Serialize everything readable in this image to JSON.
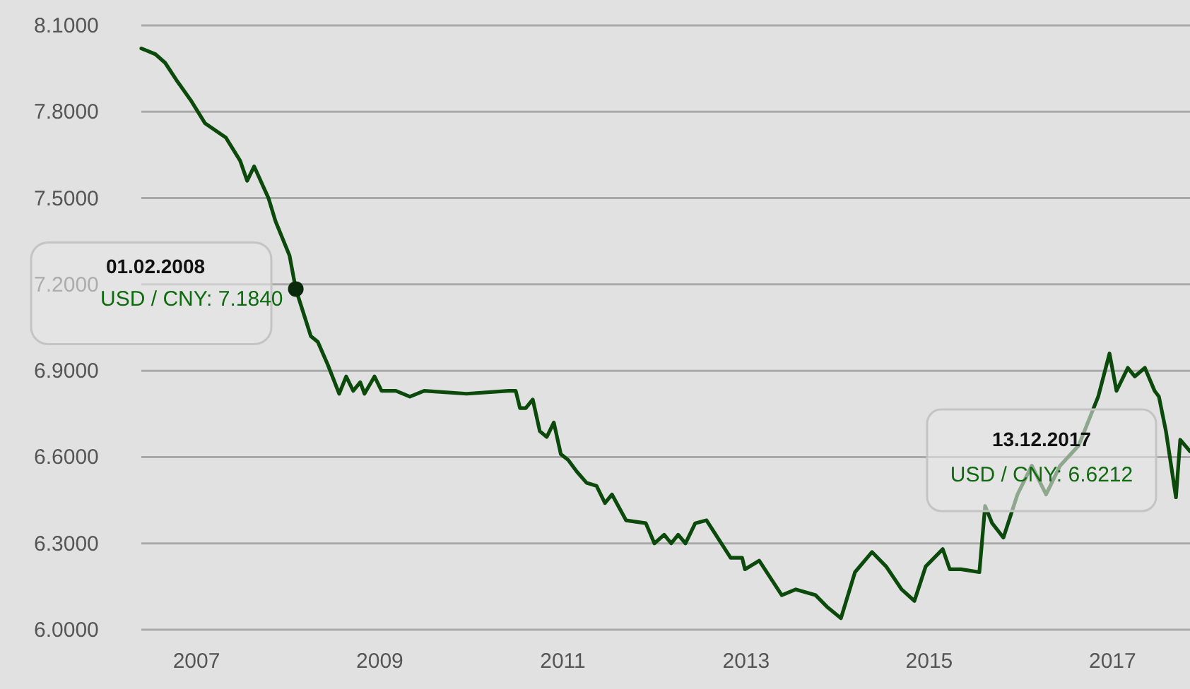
{
  "chart_data": {
    "type": "line",
    "x": [
      "2006-05-26",
      "2006-06-23",
      "2006-07-21",
      "2006-08-29",
      "2006-10-13",
      "2006-12-09",
      "2007-02-04",
      "2007-04-28",
      "2007-06-24",
      "2007-07-22",
      "2007-08-19",
      "2007-10-15",
      "2007-11-12",
      "2008-01-07",
      "2008-02-01",
      "2008-04-01",
      "2008-04-29",
      "2008-06-08",
      "2008-07-23",
      "2008-08-20",
      "2008-09-17",
      "2008-10-15",
      "2008-11-01",
      "2008-12-11",
      "2009-01-08",
      "2009-03-06",
      "2009-05-01",
      "2009-06-27",
      "2009-12-13",
      "2010-05-30",
      "2010-06-27",
      "2010-07-14",
      "2010-08-06",
      "2010-09-03",
      "2010-10-01",
      "2010-10-29",
      "2010-11-26",
      "2010-12-24",
      "2011-01-22",
      "2011-02-25",
      "2011-04-06",
      "2011-05-15",
      "2011-06-18",
      "2011-07-16",
      "2011-09-10",
      "2011-11-28",
      "2012-01-01",
      "2012-02-09",
      "2012-03-08",
      "2012-04-05",
      "2012-05-04",
      "2012-06-12",
      "2012-07-27",
      "2012-10-31",
      "2012-12-16",
      "2012-12-27",
      "2013-02-22",
      "2013-05-23",
      "2013-07-18",
      "2013-10-05",
      "2013-11-19",
      "2014-01-14",
      "2014-03-11",
      "2014-05-18",
      "2014-07-13",
      "2014-09-13",
      "2014-11-03",
      "2014-12-18",
      "2015-02-24",
      "2015-03-24",
      "2015-05-08",
      "2015-07-20",
      "2015-08-12",
      "2015-09-09",
      "2015-10-24",
      "2015-12-19",
      "2016-02-14",
      "2016-04-11",
      "2016-06-06",
      "2016-08-19",
      "2016-11-05",
      "2016-12-20",
      "2017-01-17",
      "2017-03-03",
      "2017-03-31",
      "2017-05-10",
      "2017-06-18",
      "2017-07-05",
      "2017-08-02",
      "2017-09-11",
      "2017-09-28",
      "2017-11-06"
    ],
    "series": [
      {
        "color": "#0b4a0b",
        "values": [
          8.02,
          8.01,
          8.0,
          7.97,
          7.91,
          7.84,
          7.76,
          7.71,
          7.63,
          7.56,
          7.61,
          7.5,
          7.42,
          7.3,
          7.184,
          7.02,
          7.0,
          6.92,
          6.82,
          6.88,
          6.83,
          6.86,
          6.82,
          6.88,
          6.83,
          6.83,
          6.81,
          6.83,
          6.82,
          6.83,
          6.83,
          6.77,
          6.77,
          6.8,
          6.69,
          6.67,
          6.72,
          6.61,
          6.59,
          6.55,
          6.51,
          6.5,
          6.44,
          6.47,
          6.38,
          6.37,
          6.3,
          6.33,
          6.3,
          6.33,
          6.3,
          6.37,
          6.38,
          6.25,
          6.25,
          6.21,
          6.24,
          6.12,
          6.14,
          6.12,
          6.08,
          6.04,
          6.2,
          6.27,
          6.22,
          6.14,
          6.1,
          6.22,
          6.28,
          6.21,
          6.21,
          6.2,
          6.43,
          6.37,
          6.32,
          6.47,
          6.57,
          6.47,
          6.57,
          6.64,
          6.81,
          6.96,
          6.83,
          6.91,
          6.88,
          6.91,
          6.83,
          6.81,
          6.69,
          6.46,
          6.66,
          6.62
        ]
      }
    ],
    "xlim": [
      "2006-05-26",
      "2017-11-06"
    ],
    "xticks": [
      "2007",
      "2009",
      "2011",
      "2013",
      "2015",
      "2017"
    ],
    "ylim": [
      6.0,
      8.1
    ],
    "yticks": [
      {
        "value": 6.0,
        "label": "6.0000"
      },
      {
        "value": 6.3,
        "label": "6.3000"
      },
      {
        "value": 6.6,
        "label": "6.6000"
      },
      {
        "value": 6.9,
        "label": "6.9000"
      },
      {
        "value": 7.2,
        "label": "7.2000"
      },
      {
        "value": 7.5,
        "label": "7.5000"
      },
      {
        "value": 7.8,
        "label": "7.8000"
      },
      {
        "value": 8.1,
        "label": "8.1000"
      }
    ],
    "grid": "y",
    "annotations": [
      "01.02.2008",
      {
        "text": "USD / CNY: 7.1840",
        "x": "2008-02-01",
        "y": 7.184
      },
      "13.12.2017",
      "USD / CNY: 6.6212"
    ]
  }
}
